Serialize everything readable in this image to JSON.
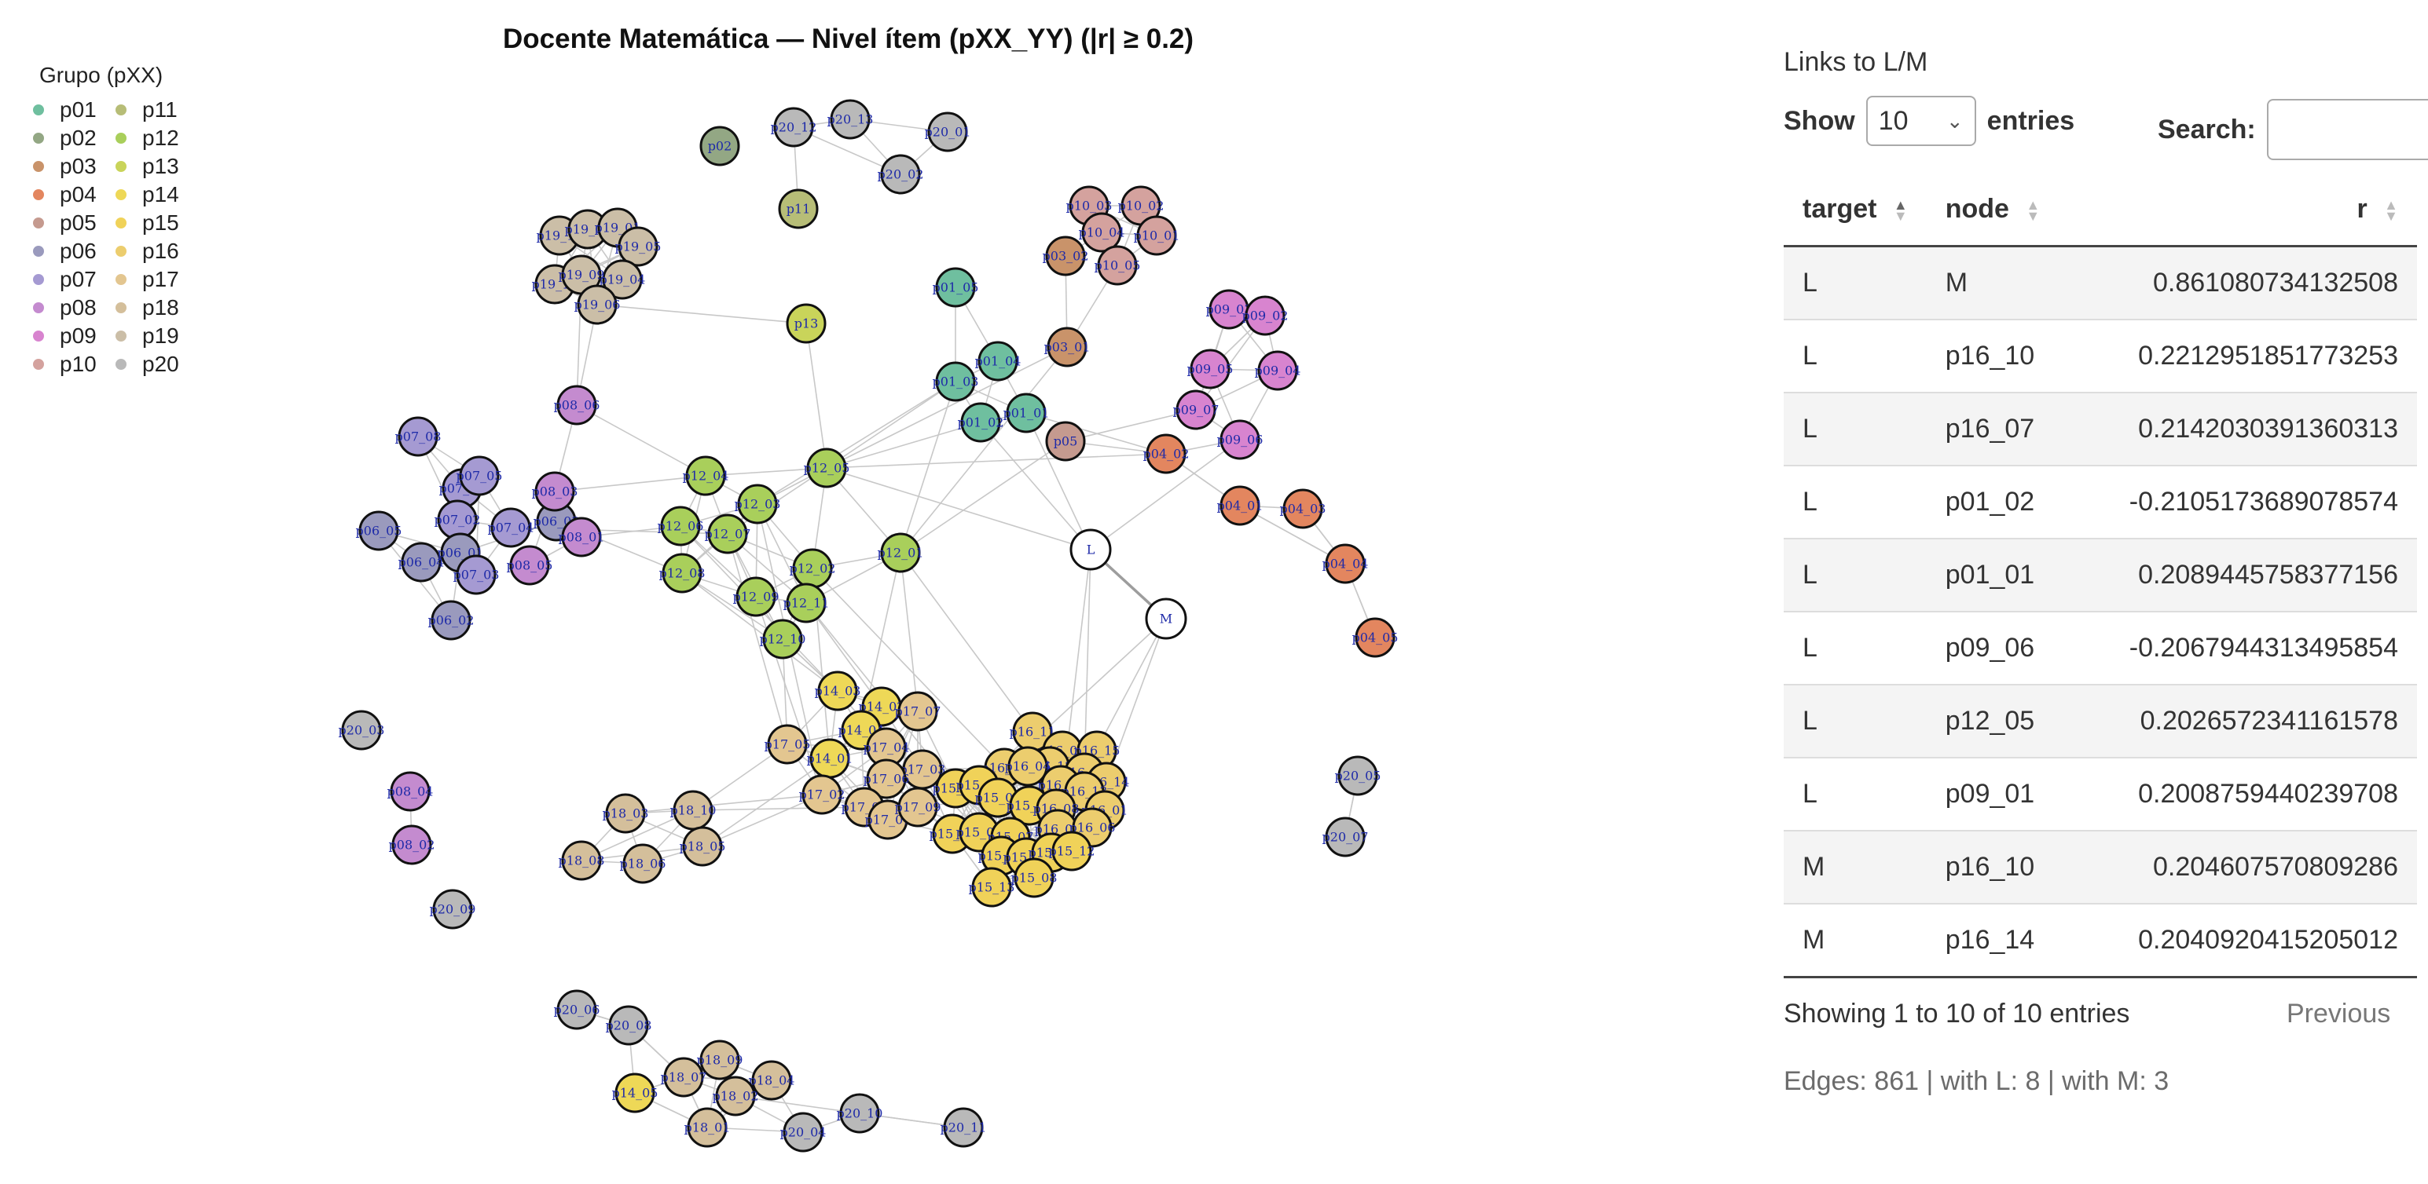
{
  "chart_data": {
    "type": "network",
    "title": "Docente Matemática — Nivel ítem (pXX_YY) (|r| ≥ 0.2)",
    "legend": {
      "title": "Grupo (pXX)",
      "position": "top-left",
      "groups": [
        {
          "name": "p01",
          "color": "#6fbf9f"
        },
        {
          "name": "p02",
          "color": "#93a784"
        },
        {
          "name": "p03",
          "color": "#c9936a"
        },
        {
          "name": "p04",
          "color": "#e3865f"
        },
        {
          "name": "p05",
          "color": "#c59a8f"
        },
        {
          "name": "p06",
          "color": "#9a9abd"
        },
        {
          "name": "p07",
          "color": "#a59ad2"
        },
        {
          "name": "p08",
          "color": "#c48bcf"
        },
        {
          "name": "p09",
          "color": "#d884cf"
        },
        {
          "name": "p10",
          "color": "#d4a29e"
        },
        {
          "name": "p11",
          "color": "#b7bd77"
        },
        {
          "name": "p12",
          "color": "#a9cf5b"
        },
        {
          "name": "p13",
          "color": "#c9d45a"
        },
        {
          "name": "p14",
          "color": "#eed857"
        },
        {
          "name": "p15",
          "color": "#f0d259"
        },
        {
          "name": "p16",
          "color": "#eccd6e"
        },
        {
          "name": "p17",
          "color": "#e3c690"
        },
        {
          "name": "p18",
          "color": "#d4bf9b"
        },
        {
          "name": "p19",
          "color": "#cbbea7"
        },
        {
          "name": "p20",
          "color": "#b9b9b9"
        }
      ]
    }
  },
  "panel": {
    "title": "Links to L/M",
    "show_label": "Show",
    "show_value": "10",
    "entries_label": "entries",
    "search_label": "Search:",
    "columns": [
      "target",
      "node",
      "r"
    ],
    "rows": [
      [
        "L",
        "M",
        "0.861080734132508"
      ],
      [
        "L",
        "p16_10",
        "0.2212951851773253"
      ],
      [
        "L",
        "p16_07",
        "0.2142030391360313"
      ],
      [
        "L",
        "p01_02",
        "-0.2105173689078574"
      ],
      [
        "L",
        "p01_01",
        "0.2089445758377156"
      ],
      [
        "L",
        "p09_06",
        "-0.2067944313495854"
      ],
      [
        "L",
        "p12_05",
        "0.2026572341161578"
      ],
      [
        "L",
        "p09_01",
        "0.2008759440239708"
      ],
      [
        "M",
        "p16_10",
        "0.204607570809286"
      ],
      [
        "M",
        "p16_14",
        "0.2040920415205012"
      ]
    ],
    "info": "Showing 1 to 10 of 10 entries",
    "previous_label": "Previous",
    "edge_stats": "Edges: 861 | with L: 8 | with M: 3"
  }
}
